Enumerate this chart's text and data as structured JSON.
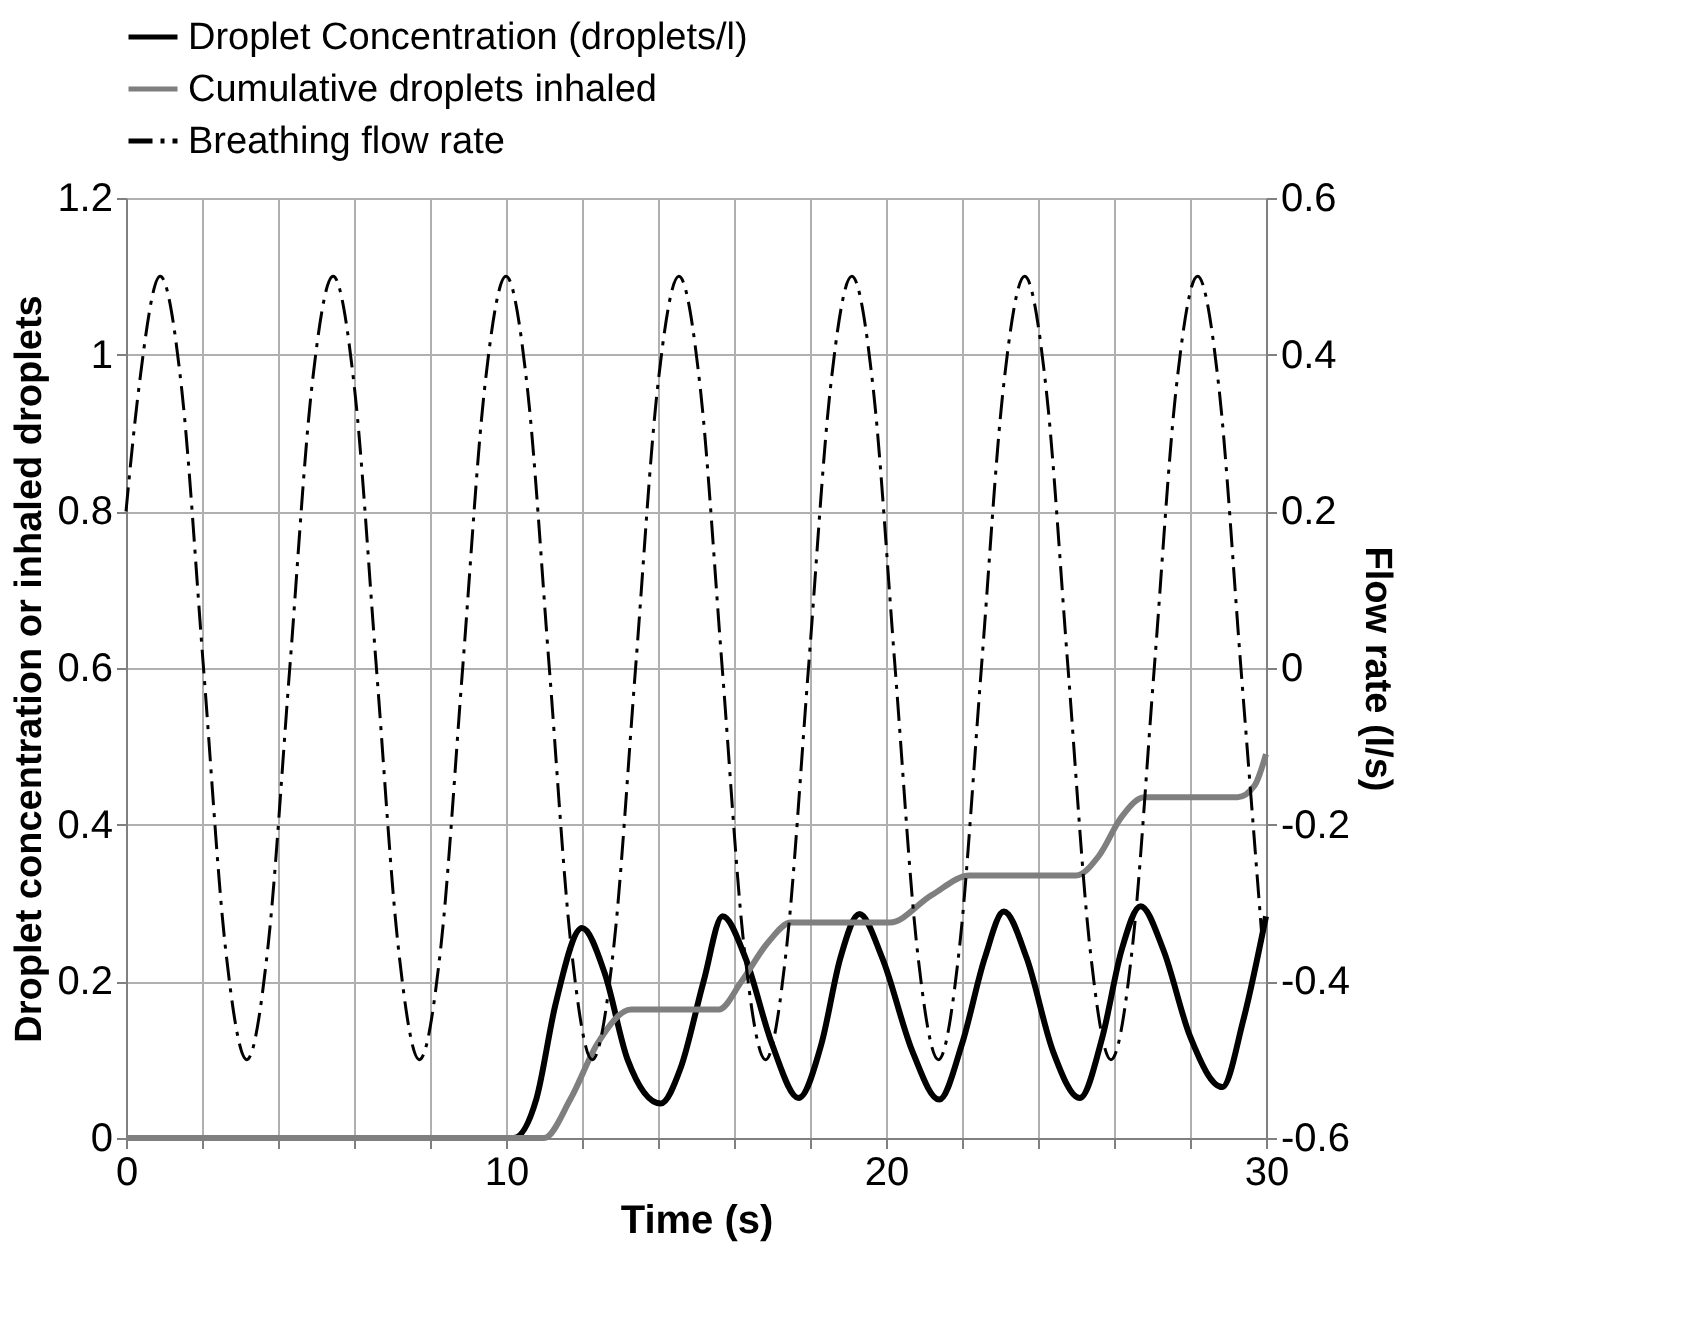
{
  "chart_data": {
    "type": "line",
    "xlabel": "Time (s)",
    "ylabel": "Droplet concentration or inhaled droplets",
    "y2label": "Flow rate (l/s)",
    "xlim": [
      0,
      30
    ],
    "xticks": [
      0,
      {
        "value": 2,
        "label": null
      },
      {
        "value": 4,
        "label": null
      },
      {
        "value": 6,
        "label": null
      },
      {
        "value": 8,
        "label": null
      },
      10,
      {
        "value": 12,
        "label": null
      },
      {
        "value": 14,
        "label": null
      },
      {
        "value": 16,
        "label": null
      },
      {
        "value": 18,
        "label": null
      },
      20,
      {
        "value": 22,
        "label": null
      },
      {
        "value": 24,
        "label": null
      },
      {
        "value": 26,
        "label": null
      },
      {
        "value": 28,
        "label": null
      },
      30
    ],
    "ylim": [
      0,
      1.2
    ],
    "yticks": [
      0,
      0.2,
      0.4,
      0.6,
      0.8,
      1,
      1.2
    ],
    "y2lim": [
      -0.6,
      0.6
    ],
    "y2ticks": [
      -0.6,
      -0.4,
      -0.2,
      0,
      0.2,
      0.4,
      0.6
    ],
    "grid": true,
    "legend": "top",
    "marker": "none",
    "series": [
      {
        "name": "Droplet Concentration (droplets/l)",
        "color": "#000000",
        "line_style": "solid",
        "x": [
          0,
          10.2,
          10.8,
          11.3,
          12.0,
          12.6,
          13.2,
          14.07,
          14.6,
          15.2,
          15.7,
          16.3,
          17.0,
          17.7,
          18.3,
          18.8,
          19.3,
          19.9,
          20.7,
          21.4,
          22.0,
          22.6,
          23.1,
          23.7,
          24.4,
          25.1,
          25.7,
          26.2,
          26.7,
          27.3,
          28.0,
          28.85,
          29.4,
          30
        ],
        "values": [
          0,
          0,
          0.05,
          0.17,
          0.268,
          0.21,
          0.1,
          0.044,
          0.09,
          0.2,
          0.283,
          0.23,
          0.12,
          0.051,
          0.12,
          0.23,
          0.286,
          0.23,
          0.11,
          0.049,
          0.12,
          0.23,
          0.289,
          0.23,
          0.11,
          0.051,
          0.13,
          0.24,
          0.296,
          0.24,
          0.13,
          0.065,
          0.15,
          0.283
        ]
      },
      {
        "name": "Cumulative droplets inhaled",
        "color": "#7f7f7f",
        "line_style": "solid",
        "x": [
          0,
          11.0,
          11.7,
          12.4,
          13.3,
          15.6,
          16.2,
          16.9,
          17.5,
          20.1,
          21.2,
          22.2,
          25.0,
          25.6,
          26.2,
          26.8,
          29.25,
          29.7,
          30
        ],
        "values": [
          0,
          0,
          0.05,
          0.12,
          0.164,
          0.164,
          0.2,
          0.25,
          0.275,
          0.275,
          0.31,
          0.335,
          0.335,
          0.36,
          0.41,
          0.435,
          0.435,
          0.45,
          0.49
        ]
      },
      {
        "name": "Breathing flow rate",
        "color": "#000000",
        "line_style": "dashed",
        "axis": "y2",
        "x": [
          0,
          0.33,
          0.9,
          1.47,
          2.04,
          2.61,
          3.18,
          3.74,
          4.31,
          4.88,
          5.45,
          6.02,
          6.59,
          7.16,
          7.72,
          8.29,
          8.86,
          9.43,
          10.0,
          10.57,
          11.14,
          11.71,
          12.27,
          12.84,
          13.41,
          13.98,
          14.55,
          15.12,
          15.69,
          16.26,
          16.83,
          17.39,
          17.96,
          18.53,
          19.1,
          19.67,
          20.24,
          20.81,
          21.38,
          21.94,
          22.51,
          23.08,
          23.65,
          24.22,
          24.79,
          25.36,
          25.92,
          26.49,
          27.06,
          27.63,
          28.2,
          28.77,
          29.34,
          29.91
        ],
        "values": [
          0.2,
          0.354,
          0.5,
          0.354,
          0,
          -0.354,
          -0.5,
          -0.354,
          0,
          0.354,
          0.5,
          0.354,
          0,
          -0.354,
          -0.5,
          -0.354,
          0,
          0.354,
          0.5,
          0.354,
          0,
          -0.354,
          -0.5,
          -0.354,
          0,
          0.354,
          0.5,
          0.354,
          0,
          -0.354,
          -0.5,
          -0.354,
          0,
          0.354,
          0.5,
          0.354,
          0,
          -0.354,
          -0.5,
          -0.354,
          0,
          0.354,
          0.5,
          0.354,
          0,
          -0.354,
          -0.5,
          -0.354,
          0,
          0.354,
          0.5,
          0.354,
          0,
          -0.354
        ]
      }
    ]
  }
}
